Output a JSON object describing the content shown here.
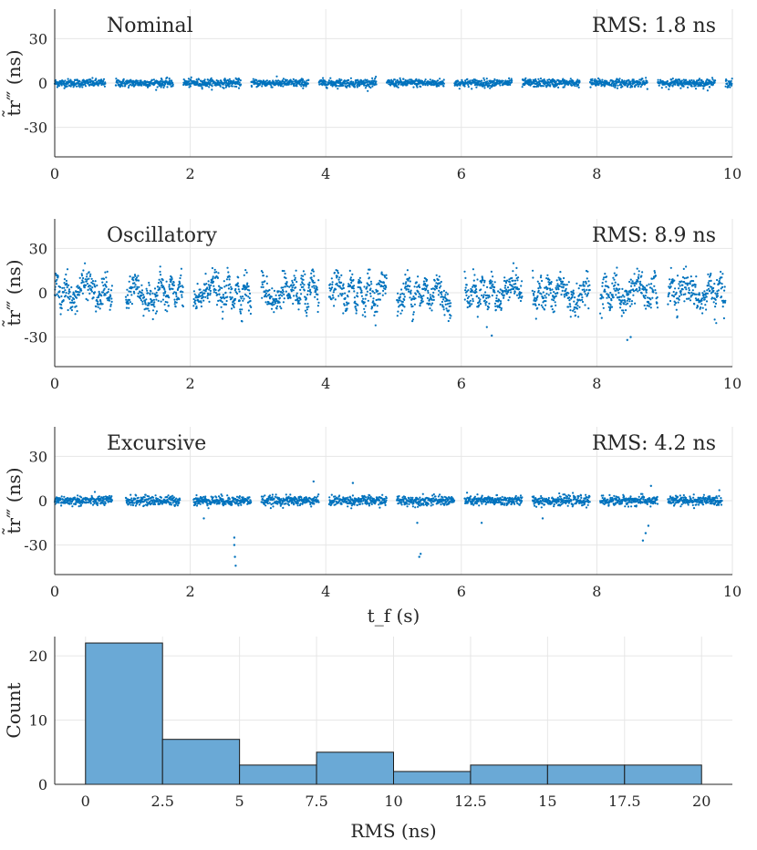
{
  "chart_data": [
    {
      "type": "scatter",
      "title": "Nominal",
      "annotation": "RMS: 1.8 ns",
      "ylabel": "t̃r‴ (ns)",
      "xlabel": "",
      "xlim": [
        0,
        10
      ],
      "ylim": [
        -50,
        50
      ],
      "xticks": [
        "0",
        "2",
        "4",
        "6",
        "8",
        "10"
      ],
      "yticks": [
        "30",
        "0",
        "-30"
      ],
      "color": "#0072bd",
      "grid": true,
      "segments": [
        [
          0.0,
          0.75
        ],
        [
          0.9,
          1.75
        ],
        [
          1.9,
          2.75
        ],
        [
          2.9,
          3.75
        ],
        [
          3.9,
          4.75
        ],
        [
          4.9,
          5.75
        ],
        [
          5.9,
          6.75
        ],
        [
          6.9,
          7.75
        ],
        [
          7.9,
          8.75
        ],
        [
          8.9,
          9.75
        ],
        [
          9.9,
          10.0
        ]
      ],
      "spread": 1.8,
      "spikes": []
    },
    {
      "type": "scatter",
      "title": "Oscillatory",
      "annotation": "RMS: 8.9 ns",
      "ylabel": "t̃r‴ (ns)",
      "xlabel": "",
      "xlim": [
        0,
        10
      ],
      "ylim": [
        -50,
        50
      ],
      "xticks": [
        "0",
        "2",
        "4",
        "6",
        "8",
        "10"
      ],
      "yticks": [
        "30",
        "0",
        "-30"
      ],
      "color": "#0072bd",
      "grid": true,
      "segments": [
        [
          0.0,
          0.85
        ],
        [
          1.05,
          1.9
        ],
        [
          2.05,
          2.9
        ],
        [
          3.05,
          3.9
        ],
        [
          4.05,
          4.9
        ],
        [
          5.05,
          5.85
        ],
        [
          6.05,
          6.9
        ],
        [
          7.05,
          7.9
        ],
        [
          8.05,
          8.9
        ],
        [
          9.05,
          9.9
        ]
      ],
      "spread": 8.9,
      "spikes": [
        [
          6.45,
          -29
        ],
        [
          8.45,
          -32
        ],
        [
          8.5,
          -30
        ]
      ]
    },
    {
      "type": "scatter",
      "title": "Excursive",
      "annotation": "RMS: 4.2 ns",
      "ylabel": "t̃r‴ (ns)",
      "xlabel": "t_f (s)",
      "xlim": [
        0,
        10
      ],
      "ylim": [
        -50,
        50
      ],
      "xticks": [
        "0",
        "2",
        "4",
        "6",
        "8",
        "10"
      ],
      "yticks": [
        "30",
        "0",
        "-30"
      ],
      "color": "#0072bd",
      "grid": true,
      "segments": [
        [
          0.0,
          0.85
        ],
        [
          1.05,
          1.85
        ],
        [
          2.05,
          2.9
        ],
        [
          3.05,
          3.9
        ],
        [
          4.05,
          4.9
        ],
        [
          5.05,
          5.9
        ],
        [
          6.05,
          6.9
        ],
        [
          7.05,
          7.9
        ],
        [
          8.05,
          8.9
        ],
        [
          9.05,
          9.85
        ]
      ],
      "spread": 2.2,
      "spikes": [
        [
          2.67,
          -44
        ],
        [
          2.66,
          -38
        ],
        [
          2.65,
          -30
        ],
        [
          2.65,
          -25
        ],
        [
          2.2,
          -12
        ],
        [
          3.82,
          13
        ],
        [
          4.4,
          12
        ],
        [
          5.4,
          -36
        ],
        [
          5.38,
          -38
        ],
        [
          5.35,
          -15
        ],
        [
          6.3,
          -15
        ],
        [
          7.2,
          -12
        ],
        [
          8.68,
          -27
        ],
        [
          8.72,
          -22
        ],
        [
          8.76,
          -17
        ],
        [
          8.8,
          10
        ]
      ]
    },
    {
      "type": "bar",
      "title": "",
      "xlabel": "RMS (ns)",
      "ylabel": "Count",
      "bin_edges": [
        0,
        2.5,
        5,
        7.5,
        10,
        12.5,
        15,
        17.5,
        20
      ],
      "values": [
        22,
        7,
        3,
        5,
        2,
        3,
        3,
        3
      ],
      "xlim": [
        -1,
        21
      ],
      "ylim": [
        0,
        23
      ],
      "xticks": [
        "0",
        "2.5",
        "5",
        "7.5",
        "10",
        "12.5",
        "15",
        "17.5",
        "20"
      ],
      "yticks": [
        "0",
        "10",
        "20"
      ],
      "color": "#6aa9d6",
      "grid": true
    }
  ]
}
